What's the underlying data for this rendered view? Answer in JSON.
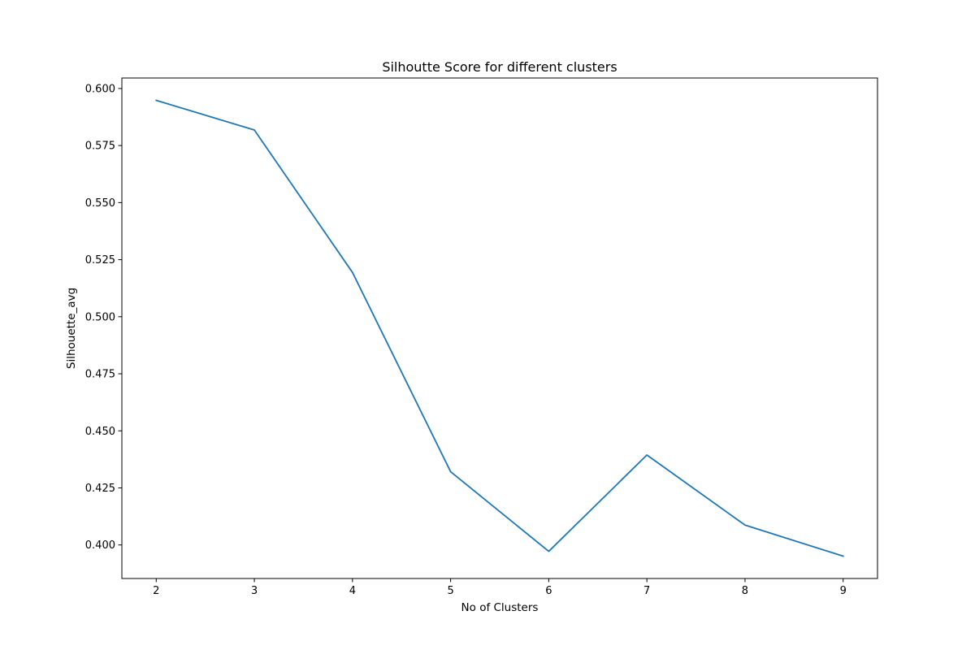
{
  "chart_data": {
    "type": "line",
    "title": "Silhoutte Score for different clusters",
    "xlabel": "No of Clusters",
    "ylabel": "Silhouette_avg",
    "x": [
      2,
      3,
      4,
      5,
      6,
      7,
      8,
      9
    ],
    "series": [
      {
        "values": [
          0.5948,
          0.5818,
          0.5194,
          0.4321,
          0.3972,
          0.4394,
          0.4087,
          0.3951
        ],
        "color": "#1f77b4"
      }
    ],
    "xlim": [
      1.65,
      9.35
    ],
    "ylim": [
      0.3853,
      0.6046
    ],
    "xticks": [
      2,
      3,
      4,
      5,
      6,
      7,
      8,
      9
    ],
    "yticks": [
      0.4,
      0.425,
      0.45,
      0.475,
      0.5,
      0.525,
      0.55,
      0.575,
      0.6
    ],
    "ytick_labels": [
      "0.400",
      "0.425",
      "0.450",
      "0.475",
      "0.500",
      "0.525",
      "0.550",
      "0.575",
      "0.600"
    ],
    "grid": false,
    "legend": "none"
  }
}
